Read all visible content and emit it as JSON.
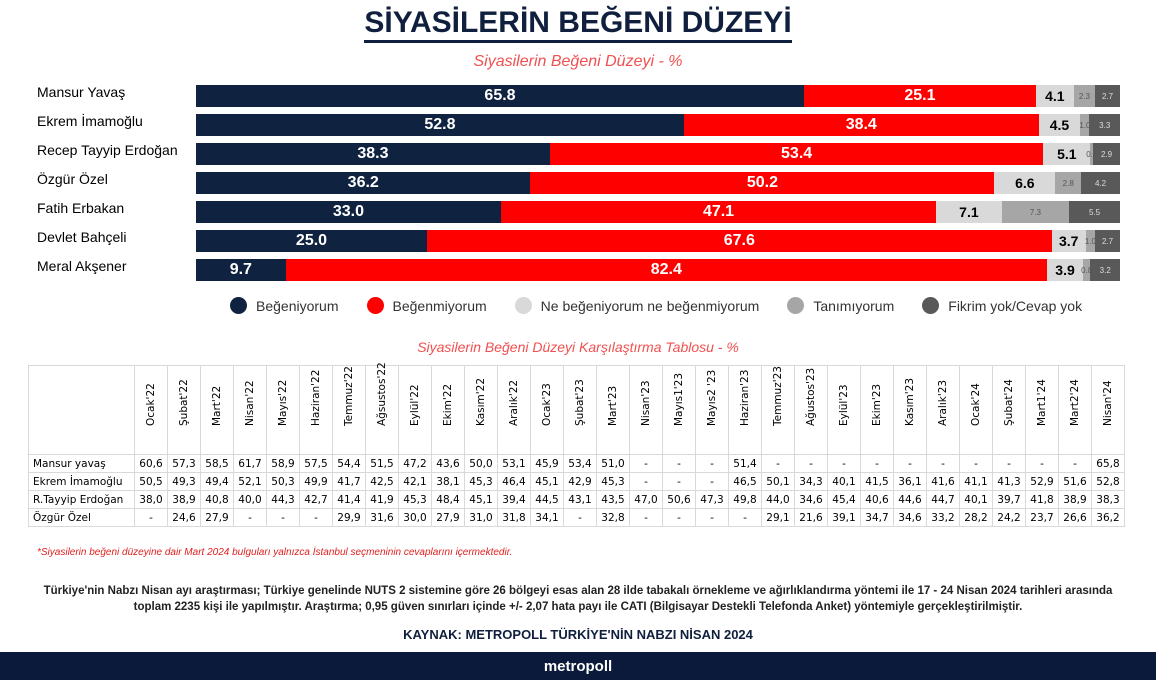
{
  "title": "SİYASİLERİN BEĞENİ DÜZEYİ",
  "chart_data": [
    {
      "type": "bar",
      "stacked": true,
      "orientation": "horizontal",
      "title": "Siyasilerin Beğeni Düzeyi - %",
      "categories": [
        "Mansur Yavaş",
        "Ekrem İmamoğlu",
        "Recep Tayyip Erdoğan",
        "Özgür Özel",
        "Fatih Erbakan",
        "Devlet Bahçeli",
        "Meral Akşener"
      ],
      "series": [
        {
          "name": "Beğeniyorum",
          "color": "#0f2340",
          "values": [
            65.8,
            52.8,
            38.3,
            36.2,
            33.0,
            25.0,
            9.7
          ]
        },
        {
          "name": "Beğenmiyorum",
          "color": "#ff0000",
          "values": [
            25.1,
            38.4,
            53.4,
            50.2,
            47.1,
            67.6,
            82.4
          ]
        },
        {
          "name": "Ne beğeniyorum ne beğenmiyorum",
          "color": "#d9d9d9",
          "values": [
            4.1,
            4.5,
            5.1,
            6.6,
            7.1,
            3.7,
            3.9
          ]
        },
        {
          "name": "Tanımıyorum",
          "color": "#a6a6a6",
          "values": [
            2.3,
            1.0,
            0.3,
            2.8,
            7.3,
            1.0,
            0.8
          ]
        },
        {
          "name": "Fikrim yok/Cevap yok",
          "color": "#595959",
          "values": [
            2.7,
            3.3,
            2.9,
            4.2,
            5.5,
            2.7,
            3.2
          ]
        }
      ],
      "legend": "bottom"
    },
    {
      "type": "table",
      "title": "Siyasilerin Beğeni Düzeyi Karşılaştırma Tablosu - %",
      "columns": [
        "Ocak'22",
        "Şubat'22",
        "Mart'22",
        "Nisan'22",
        "Mayıs'22",
        "Haziran'22",
        "Temmuz'22",
        "Ağsustos'22",
        "Eylül'22",
        "Ekim'22",
        "Kasım'22",
        "Aralık'22",
        "Ocak'23",
        "Şubat'23",
        "Mart'23",
        "Nisan'23",
        "Mayıs1'23",
        "Mayıs2 '23",
        "Haziran'23",
        "Temmuz'23",
        "Ağustos'23",
        "Eylül'23",
        "Ekim'23",
        "Kasım'23",
        "Aralık'23",
        "Ocak'24",
        "Şubat'24",
        "Mart1'24",
        "Mart2'24",
        "Nisan'24"
      ],
      "rows": [
        {
          "name": "Mansur yavaş",
          "values": [
            "60,6",
            "57,3",
            "58,5",
            "61,7",
            "58,9",
            "57,5",
            "54,4",
            "51,5",
            "47,2",
            "43,6",
            "50,0",
            "53,1",
            "45,9",
            "53,4",
            "51,0",
            "-",
            "-",
            "-",
            "51,4",
            "-",
            "-",
            "-",
            "-",
            "-",
            "-",
            "-",
            "-",
            "-",
            "-",
            "65,8"
          ]
        },
        {
          "name": "Ekrem İmamoğlu",
          "values": [
            "50,5",
            "49,3",
            "49,4",
            "52,1",
            "50,3",
            "49,9",
            "41,7",
            "42,5",
            "42,1",
            "38,1",
            "45,3",
            "46,4",
            "45,1",
            "42,9",
            "45,3",
            "-",
            "-",
            "-",
            "46,5",
            "50,1",
            "34,3",
            "40,1",
            "41,5",
            "36,1",
            "41,6",
            "41,1",
            "41,3",
            "52,9",
            "51,6",
            "52,8"
          ]
        },
        {
          "name": "R.Tayyip Erdoğan",
          "values": [
            "38,0",
            "38,9",
            "40,8",
            "40,0",
            "44,3",
            "42,7",
            "41,4",
            "41,9",
            "45,3",
            "48,4",
            "45,1",
            "39,4",
            "44,5",
            "43,1",
            "43,5",
            "47,0",
            "50,6",
            "47,3",
            "49,8",
            "44,0",
            "34,6",
            "45,4",
            "40,6",
            "44,6",
            "44,7",
            "40,1",
            "39,7",
            "41,8",
            "38,9",
            "38,3"
          ]
        },
        {
          "name": "Özgür Özel",
          "values": [
            "-",
            "24,6",
            "27,9",
            "-",
            "-",
            "-",
            "29,9",
            "31,6",
            "30,0",
            "27,9",
            "31,0",
            "31,8",
            "34,1",
            "-",
            "32,8",
            "-",
            "-",
            "-",
            "-",
            "29,1",
            "21,6",
            "39,1",
            "34,7",
            "34,6",
            "33,2",
            "28,2",
            "24,2",
            "23,7",
            "26,6",
            "36,2"
          ]
        }
      ]
    }
  ],
  "note": "*Siyasilerin beğeni düzeyine dair Mart 2024 bulguları yalnızca İstanbul seçmeninin cevaplarını içermektedir.",
  "methodology": "Türkiye'nin Nabzı Nisan ayı araştırması; Türkiye genelinde NUTS 2 sistemine göre 26 bölgeyi esas alan 28 ilde tabakalı örnekleme ve ağırlıklandırma yöntemi ile 17 - 24 Nisan 2024 tarihleri arasında toplam 2235 kişi ile yapılmıştır. Araştırma; 0,95 güven sınırları içinde +/- 2,07 hata payı ile CATI (Bilgisayar Destekli Telefonda Anket) yöntemiyle gerçekleştirilmiştir.",
  "source": "KAYNAK: METROPOLL TÜRKİYE'NİN NABZI NİSAN 2024",
  "brand": "metropoll"
}
